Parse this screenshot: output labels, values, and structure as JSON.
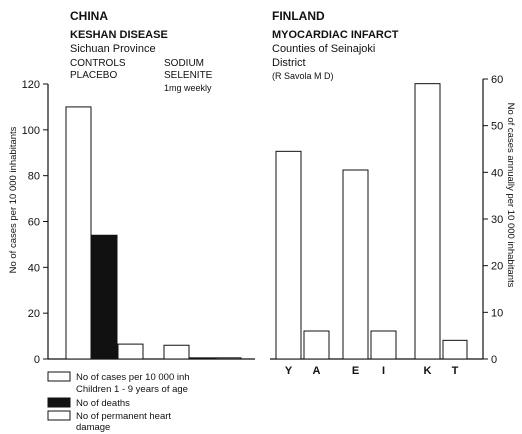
{
  "chart_data": [
    {
      "type": "bar",
      "title": "CHINA",
      "subtitle": [
        "KESHAN DISEASE",
        "Sichuan Province"
      ],
      "group_labels": [
        [
          "CONTROLS",
          "PLACEBO"
        ],
        [
          "SODIUM",
          "SELENITE",
          "1mg weekly"
        ]
      ],
      "ylabel": "No of cases per 10 000 inhabitants",
      "ylim": [
        0,
        120
      ],
      "yticks": [
        0,
        20,
        40,
        60,
        80,
        100,
        120
      ],
      "bar_width_days": 0,
      "series": [
        {
          "name": "No of cases per 10 000 inh Children 1 - 9 years of age",
          "fill": "#ffffff",
          "values": [
            110,
            6
          ]
        },
        {
          "name": "No of deaths",
          "fill": "#111111",
          "values": [
            54,
            0.5
          ]
        },
        {
          "name": "No of permanent heart damage",
          "fill": "#ffffff",
          "values": [
            6.5,
            0.5
          ]
        }
      ]
    },
    {
      "type": "bar",
      "title": "FINLAND",
      "subtitle": [
        "MYOCARDIAC INFARCT",
        "Counties of Seinajoki",
        "District",
        "(R Savola M D)"
      ],
      "ylabel": "No of cases annually per 10 000 inhabitants",
      "ylim": [
        0,
        60
      ],
      "yticks": [
        0,
        10,
        20,
        30,
        40,
        50,
        60
      ],
      "categories": [
        "Y",
        "A",
        "E",
        "I",
        "K",
        "T"
      ],
      "values": [
        44.5,
        6,
        40.5,
        6,
        59,
        4
      ]
    }
  ],
  "legend": [
    {
      "text": [
        "No of cases per 10 000 inh",
        "Children 1 - 9 years of age"
      ],
      "fill": "#ffffff"
    },
    {
      "text": [
        "No of deaths"
      ],
      "fill": "#111111"
    },
    {
      "text": [
        "No of permanent heart",
        "damage"
      ],
      "fill": "#ffffff"
    }
  ]
}
